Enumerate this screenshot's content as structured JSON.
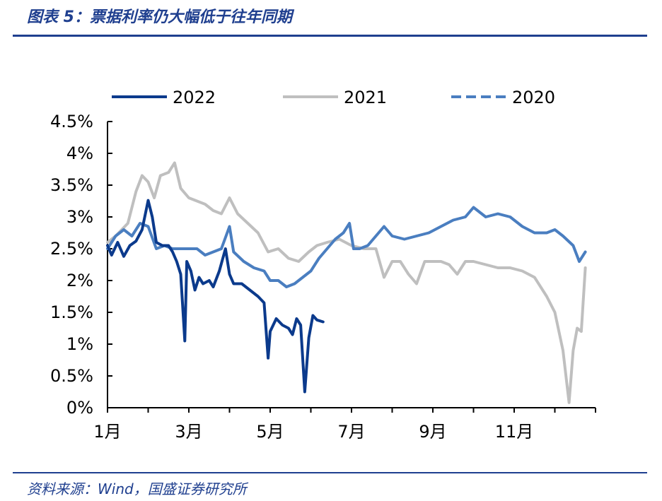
{
  "header": {
    "title": "图表 5：票据利率仍大幅低于往年同期"
  },
  "footer": {
    "source": "资料来源：Wind，国盛证券研究所"
  },
  "colors": {
    "accent": "#1F3F8F",
    "series_2022": "#0B3A8C",
    "series_2021": "#BFBFBF",
    "series_2020": "#4A7EC0"
  },
  "chart_data": {
    "type": "line",
    "title": "",
    "xlabel": "",
    "ylabel": "",
    "x_unit": "month",
    "xlim": [
      1,
      13
    ],
    "ylim": [
      0,
      4.5
    ],
    "x_ticks": [
      "1月",
      "3月",
      "5月",
      "7月",
      "9月",
      "11月"
    ],
    "y_ticks": [
      "0%",
      "0.5%",
      "1%",
      "1.5%",
      "2%",
      "2.5%",
      "3%",
      "3.5%",
      "4%",
      "4.5%"
    ],
    "grid": false,
    "legend": "top",
    "series": [
      {
        "name": "2022",
        "style": "solid",
        "points": [
          [
            1.0,
            2.55
          ],
          [
            1.1,
            2.4
          ],
          [
            1.25,
            2.6
          ],
          [
            1.4,
            2.38
          ],
          [
            1.55,
            2.55
          ],
          [
            1.7,
            2.62
          ],
          [
            1.85,
            2.8
          ],
          [
            2.0,
            3.26
          ],
          [
            2.1,
            3.0
          ],
          [
            2.2,
            2.6
          ],
          [
            2.35,
            2.55
          ],
          [
            2.5,
            2.55
          ],
          [
            2.6,
            2.45
          ],
          [
            2.7,
            2.3
          ],
          [
            2.8,
            2.1
          ],
          [
            2.9,
            1.05
          ],
          [
            2.95,
            2.3
          ],
          [
            3.05,
            2.15
          ],
          [
            3.15,
            1.85
          ],
          [
            3.25,
            2.05
          ],
          [
            3.35,
            1.95
          ],
          [
            3.5,
            2.0
          ],
          [
            3.6,
            1.9
          ],
          [
            3.75,
            2.15
          ],
          [
            3.9,
            2.5
          ],
          [
            4.0,
            2.1
          ],
          [
            4.1,
            1.95
          ],
          [
            4.3,
            1.95
          ],
          [
            4.5,
            1.85
          ],
          [
            4.7,
            1.75
          ],
          [
            4.85,
            1.65
          ],
          [
            4.95,
            0.78
          ],
          [
            5.0,
            1.2
          ],
          [
            5.15,
            1.4
          ],
          [
            5.3,
            1.3
          ],
          [
            5.45,
            1.25
          ],
          [
            5.55,
            1.15
          ],
          [
            5.65,
            1.4
          ],
          [
            5.75,
            1.3
          ],
          [
            5.85,
            0.25
          ],
          [
            5.95,
            1.1
          ],
          [
            6.05,
            1.45
          ],
          [
            6.15,
            1.38
          ],
          [
            6.3,
            1.35
          ]
        ]
      },
      {
        "name": "2021",
        "style": "solid",
        "points": [
          [
            1.0,
            2.6
          ],
          [
            1.2,
            2.7
          ],
          [
            1.5,
            2.9
          ],
          [
            1.7,
            3.4
          ],
          [
            1.85,
            3.65
          ],
          [
            2.0,
            3.55
          ],
          [
            2.15,
            3.3
          ],
          [
            2.3,
            3.65
          ],
          [
            2.5,
            3.7
          ],
          [
            2.65,
            3.85
          ],
          [
            2.8,
            3.45
          ],
          [
            3.0,
            3.3
          ],
          [
            3.2,
            3.25
          ],
          [
            3.4,
            3.2
          ],
          [
            3.6,
            3.1
          ],
          [
            3.8,
            3.05
          ],
          [
            4.0,
            3.3
          ],
          [
            4.2,
            3.05
          ],
          [
            4.45,
            2.9
          ],
          [
            4.7,
            2.75
          ],
          [
            4.95,
            2.45
          ],
          [
            5.2,
            2.5
          ],
          [
            5.45,
            2.35
          ],
          [
            5.7,
            2.3
          ],
          [
            5.95,
            2.45
          ],
          [
            6.15,
            2.55
          ],
          [
            6.4,
            2.6
          ],
          [
            6.7,
            2.65
          ],
          [
            7.0,
            2.55
          ],
          [
            7.3,
            2.5
          ],
          [
            7.6,
            2.5
          ],
          [
            7.8,
            2.05
          ],
          [
            8.0,
            2.3
          ],
          [
            8.2,
            2.3
          ],
          [
            8.4,
            2.1
          ],
          [
            8.6,
            1.95
          ],
          [
            8.8,
            2.3
          ],
          [
            9.0,
            2.3
          ],
          [
            9.2,
            2.3
          ],
          [
            9.4,
            2.25
          ],
          [
            9.6,
            2.1
          ],
          [
            9.8,
            2.3
          ],
          [
            10.0,
            2.3
          ],
          [
            10.3,
            2.25
          ],
          [
            10.6,
            2.2
          ],
          [
            10.9,
            2.2
          ],
          [
            11.2,
            2.15
          ],
          [
            11.5,
            2.05
          ],
          [
            11.8,
            1.75
          ],
          [
            12.0,
            1.5
          ],
          [
            12.2,
            0.9
          ],
          [
            12.35,
            0.08
          ],
          [
            12.45,
            0.9
          ],
          [
            12.55,
            1.25
          ],
          [
            12.65,
            1.2
          ],
          [
            12.75,
            2.2
          ]
        ]
      },
      {
        "name": "2020",
        "style": "dashed",
        "points": [
          [
            1.0,
            2.5
          ],
          [
            1.2,
            2.7
          ],
          [
            1.4,
            2.8
          ],
          [
            1.6,
            2.7
          ],
          [
            1.8,
            2.9
          ],
          [
            2.0,
            2.85
          ],
          [
            2.2,
            2.5
          ],
          [
            2.4,
            2.55
          ],
          [
            2.6,
            2.5
          ],
          [
            2.8,
            2.5
          ],
          [
            3.0,
            2.5
          ],
          [
            3.2,
            2.5
          ],
          [
            3.4,
            2.4
          ],
          [
            3.6,
            2.45
          ],
          [
            3.8,
            2.5
          ],
          [
            4.0,
            2.85
          ],
          [
            4.1,
            2.45
          ],
          [
            4.35,
            2.3
          ],
          [
            4.6,
            2.2
          ],
          [
            4.85,
            2.15
          ],
          [
            5.0,
            2.0
          ],
          [
            5.2,
            2.0
          ],
          [
            5.4,
            1.9
          ],
          [
            5.6,
            1.95
          ],
          [
            5.8,
            2.05
          ],
          [
            6.0,
            2.15
          ],
          [
            6.2,
            2.35
          ],
          [
            6.4,
            2.5
          ],
          [
            6.6,
            2.65
          ],
          [
            6.8,
            2.75
          ],
          [
            6.95,
            2.9
          ],
          [
            7.05,
            2.5
          ],
          [
            7.2,
            2.5
          ],
          [
            7.4,
            2.55
          ],
          [
            7.6,
            2.7
          ],
          [
            7.8,
            2.85
          ],
          [
            8.0,
            2.7
          ],
          [
            8.3,
            2.65
          ],
          [
            8.6,
            2.7
          ],
          [
            8.9,
            2.75
          ],
          [
            9.2,
            2.85
          ],
          [
            9.5,
            2.95
          ],
          [
            9.8,
            3.0
          ],
          [
            10.0,
            3.15
          ],
          [
            10.3,
            3.0
          ],
          [
            10.6,
            3.05
          ],
          [
            10.9,
            3.0
          ],
          [
            11.2,
            2.85
          ],
          [
            11.5,
            2.75
          ],
          [
            11.8,
            2.75
          ],
          [
            12.0,
            2.8
          ],
          [
            12.2,
            2.7
          ],
          [
            12.45,
            2.55
          ],
          [
            12.6,
            2.3
          ],
          [
            12.75,
            2.45
          ]
        ]
      }
    ]
  }
}
